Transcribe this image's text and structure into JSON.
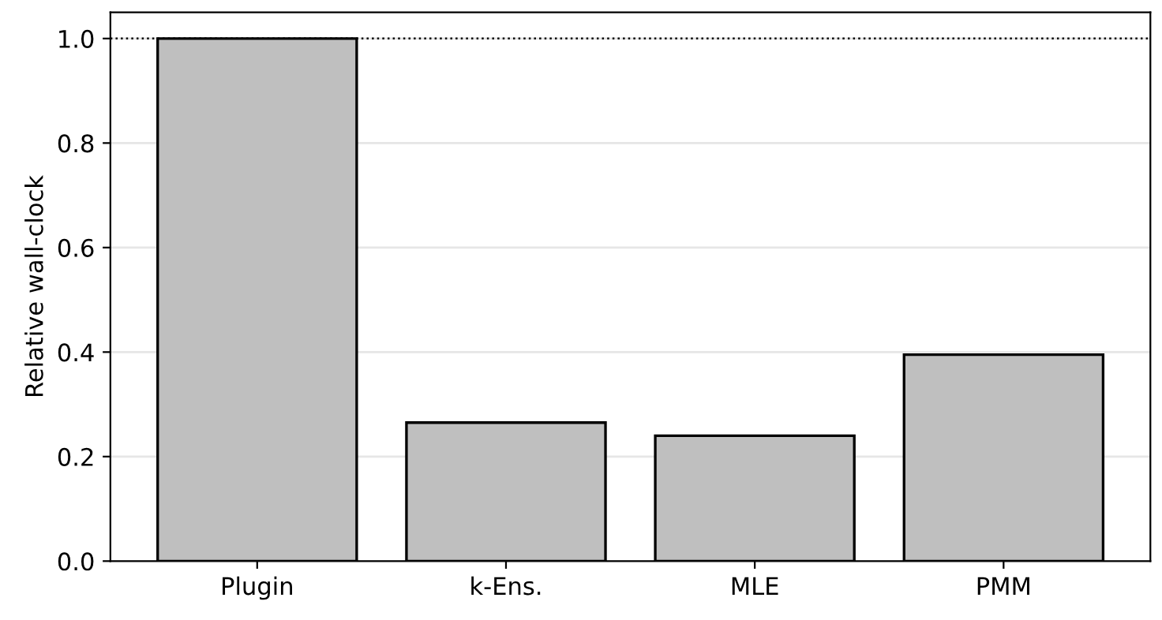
{
  "chart_data": {
    "type": "bar",
    "ylabel": "Relative wall-clock",
    "categories": [
      "Plugin",
      "k-Ens.",
      "MLE",
      "PMM"
    ],
    "values": [
      1.0,
      0.265,
      0.24,
      0.395
    ],
    "color": "#bfbfbf",
    "ylim": [
      0,
      1.05
    ],
    "yticks": [
      {
        "value": 0,
        "label": "0.0"
      },
      0.2,
      0.4,
      0.6,
      0.8,
      {
        "value": 1,
        "label": "1.0"
      }
    ],
    "grid": "y",
    "ref_lines": [
      {
        "axis": "y",
        "value": 1.0,
        "label": null,
        "color": "#000000",
        "line_style": "dotted"
      }
    ]
  }
}
